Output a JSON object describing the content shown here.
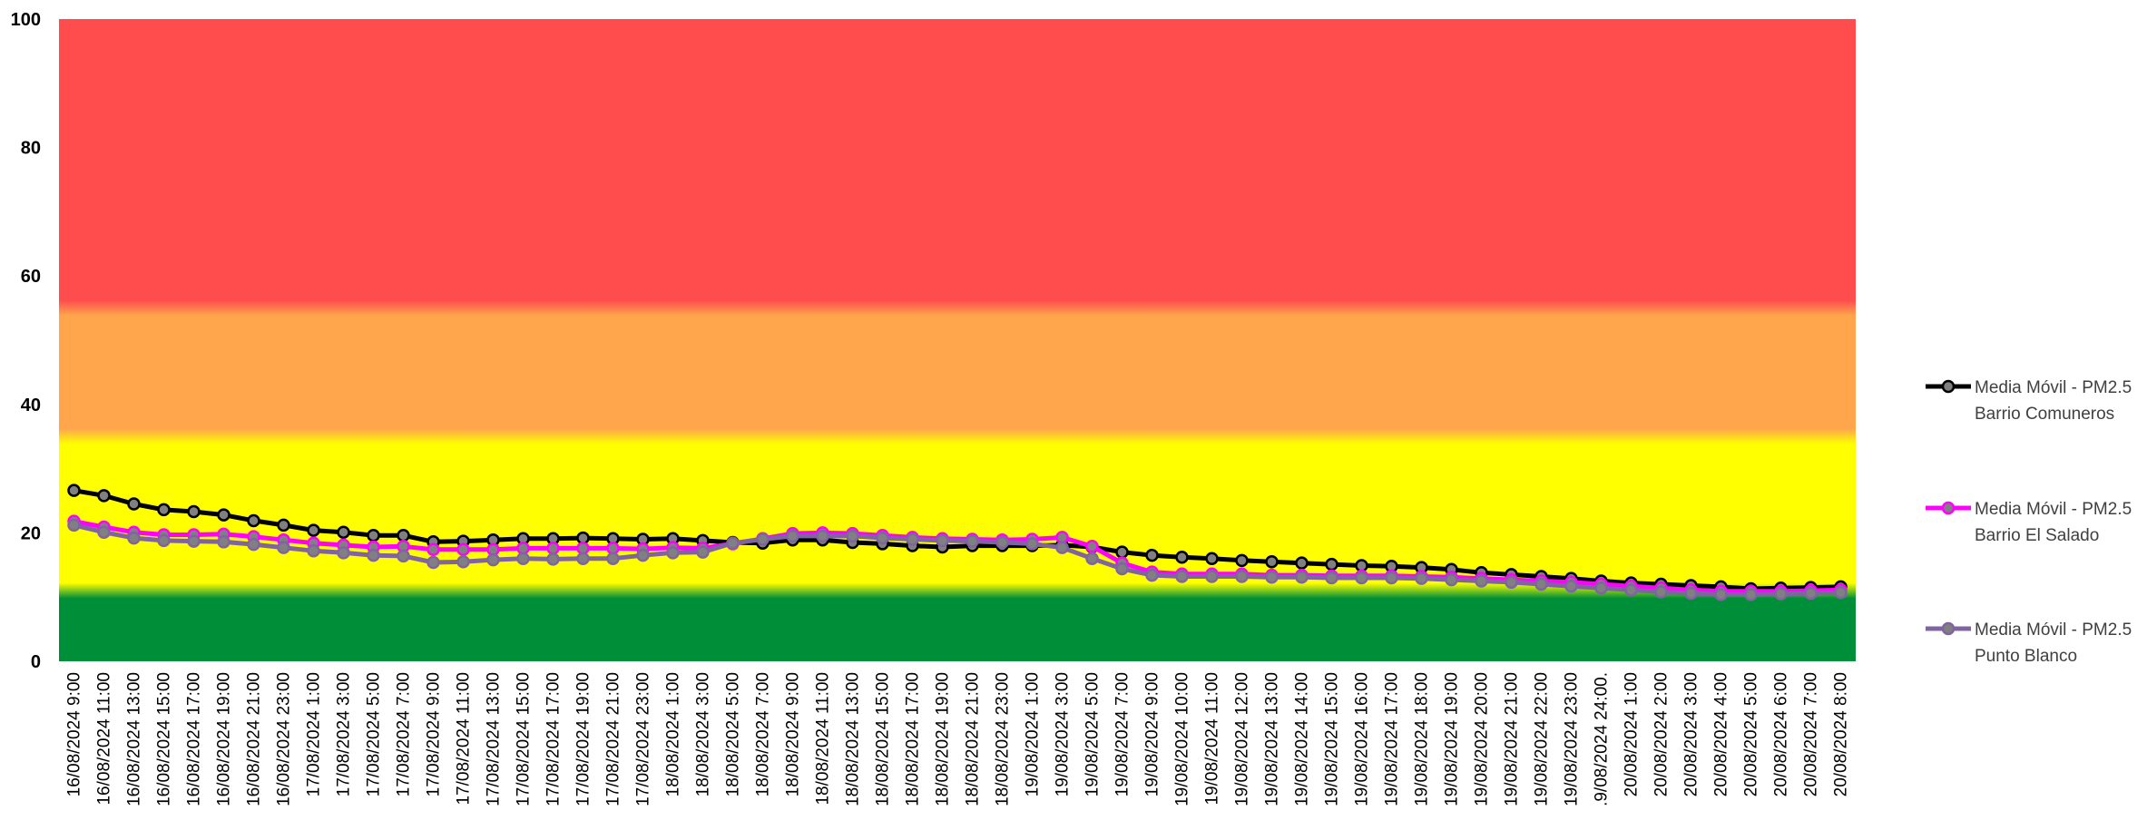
{
  "chart_data": {
    "type": "line",
    "title": "",
    "xlabel": "",
    "ylabel": "",
    "ylim": [
      0,
      100
    ],
    "yticks": [
      0,
      20,
      40,
      60,
      80,
      100
    ],
    "grid": false,
    "legend_position": "right",
    "background_bands": [
      {
        "from": 0,
        "to": 11,
        "color": "#008f39"
      },
      {
        "from": 11,
        "to": 35,
        "color": "#ffff00"
      },
      {
        "from": 35,
        "to": 55,
        "color": "#ffa64d"
      },
      {
        "from": 55,
        "to": 100,
        "color": "#ff4d4d"
      }
    ],
    "categories": [
      "16/08/2024 9:00",
      "16/08/2024 11:00",
      "16/08/2024 13:00",
      "16/08/2024 15:00",
      "16/08/2024 17:00",
      "16/08/2024 19:00",
      "16/08/2024 21:00",
      "16/08/2024 23:00",
      "17/08/2024 1:00",
      "17/08/2024 3:00",
      "17/08/2024 5:00",
      "17/08/2024 7:00",
      "17/08/2024 9:00",
      "17/08/2024 11:00",
      "17/08/2024 13:00",
      "17/08/2024 15:00",
      "17/08/2024 17:00",
      "17/08/2024 19:00",
      "17/08/2024 21:00",
      "17/08/2024 23:00",
      "18/08/2024 1:00",
      "18/08/2024 3:00",
      "18/08/2024 5:00",
      "18/08/2024 7:00",
      "18/08/2024 9:00",
      "18/08/2024 11:00",
      "18/08/2024 13:00",
      "18/08/2024 15:00",
      "18/08/2024 17:00",
      "18/08/2024 19:00",
      "18/08/2024 21:00",
      "18/08/2024 23:00",
      "19/08/2024 1:00",
      "19/08/2024 3:00",
      "19/08/2024 5:00",
      "19/08/2024 7:00",
      "19/08/2024 9:00",
      "19/08/2024 10:00",
      "19/08/2024 11:00",
      "19/08/2024 12:00",
      "19/08/2024 13:00",
      "19/08/2024 14:00",
      "19/08/2024 15:00",
      "19/08/2024 16:00",
      "19/08/2024 17:00",
      "19/08/2024 18:00",
      "19/08/2024 19:00",
      "19/08/2024 20:00",
      "19/08/2024 21:00",
      "19/08/2024 22:00",
      "19/08/2024 23:00",
      ".9/08/2024 24:00.",
      "20/08/2024 1:00",
      "20/08/2024 2:00",
      "20/08/2024 3:00",
      "20/08/2024 4:00",
      "20/08/2024 5:00",
      "20/08/2024 6:00",
      "20/08/2024 7:00",
      "20/08/2024 8:00"
    ],
    "series": [
      {
        "name": "Media Móvil - PM2.5 Barrio Comuneros",
        "name_lines": [
          "Media Móvil - PM2.5",
          "Barrio Comuneros"
        ],
        "color": "#000000",
        "values": [
          26.6,
          25.8,
          24.5,
          23.6,
          23.3,
          22.8,
          21.9,
          21.2,
          20.4,
          20.1,
          19.6,
          19.6,
          18.6,
          18.7,
          18.9,
          19.1,
          19.1,
          19.2,
          19.1,
          19.0,
          19.1,
          18.8,
          18.5,
          18.4,
          18.9,
          18.9,
          18.5,
          18.3,
          18.0,
          17.8,
          18.0,
          18.0,
          18.0,
          18.1,
          17.8,
          17.0,
          16.5,
          16.2,
          16.0,
          15.7,
          15.5,
          15.3,
          15.1,
          14.9,
          14.8,
          14.6,
          14.3,
          13.8,
          13.5,
          13.2,
          12.9,
          12.5,
          12.2,
          12.0,
          11.8,
          11.6,
          11.3,
          11.4,
          11.5,
          11.6
        ]
      },
      {
        "name": "Media Móvil - PM2.5 Barrio El Salado",
        "name_lines": [
          "Media Móvil - PM2.5",
          "Barrio El Salado"
        ],
        "color": "#ff00ff",
        "values": [
          21.8,
          20.9,
          20.1,
          19.7,
          19.7,
          19.8,
          19.4,
          18.9,
          18.4,
          18.1,
          17.8,
          17.9,
          17.4,
          17.4,
          17.4,
          17.6,
          17.6,
          17.6,
          17.6,
          17.5,
          17.7,
          17.6,
          18.3,
          19.1,
          19.9,
          20.0,
          19.9,
          19.6,
          19.3,
          19.1,
          19.0,
          18.9,
          19.0,
          19.3,
          17.9,
          15.3,
          13.9,
          13.6,
          13.6,
          13.6,
          13.4,
          13.4,
          13.3,
          13.3,
          13.3,
          13.2,
          13.1,
          12.9,
          12.7,
          12.5,
          12.3,
          12.0,
          11.7,
          11.4,
          11.1,
          10.9,
          10.9,
          10.9,
          11.0,
          11.1
        ]
      },
      {
        "name": "Media Móvil - PM2.5 Punto Blanco",
        "name_lines": [
          "Media Móvil - PM2.5",
          "Punto Blanco"
        ],
        "color": "#8064a2",
        "values": [
          21.2,
          20.1,
          19.2,
          18.8,
          18.7,
          18.6,
          18.2,
          17.7,
          17.2,
          16.9,
          16.5,
          16.4,
          15.4,
          15.5,
          15.8,
          16.0,
          15.9,
          16.0,
          16.0,
          16.5,
          16.9,
          17.0,
          18.4,
          19.0,
          19.5,
          19.5,
          19.5,
          19.2,
          19.0,
          18.8,
          18.7,
          18.5,
          18.3,
          17.7,
          16.0,
          14.4,
          13.4,
          13.2,
          13.2,
          13.2,
          13.1,
          13.1,
          13.0,
          13.0,
          13.0,
          12.9,
          12.7,
          12.5,
          12.3,
          12.0,
          11.7,
          11.4,
          11.1,
          10.8,
          10.6,
          10.4,
          10.4,
          10.5,
          10.6,
          10.7
        ]
      }
    ]
  }
}
